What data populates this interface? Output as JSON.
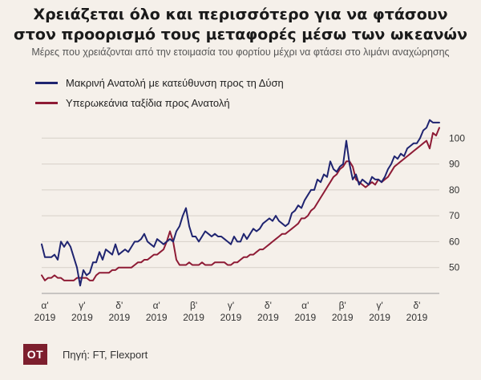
{
  "header": {
    "title_line1": "Χρειάζεται όλο και περισσότερο για να φτάσουν",
    "title_line2": "στον προορισμό τους μεταφορές μέσω των ωκεανών",
    "subtitle": "Μέρες που χρειάζονται από την ετοιμασία του φορτίου μέχρι να φτάσει στο λιμάνι αναχώρησης"
  },
  "footer": {
    "logo": "OT",
    "source": "Πηγή: FT, Flexport"
  },
  "colors": {
    "series1": "#1f2470",
    "series2": "#8e1b35",
    "grid": "#d6d0c8",
    "background": "#f5f0ea"
  },
  "chart_data": {
    "type": "line",
    "title": "",
    "xlabel": "",
    "ylabel": "",
    "ylim": [
      40,
      110
    ],
    "yticks": [
      50,
      60,
      70,
      80,
      90,
      100
    ],
    "xticks": [
      {
        "top": "α'",
        "bottom": "2019"
      },
      {
        "top": "γ'",
        "bottom": "2019"
      },
      {
        "top": "δ'",
        "bottom": "2019"
      },
      {
        "top": "α'",
        "bottom": "2019"
      },
      {
        "top": "β'",
        "bottom": "2019"
      },
      {
        "top": "γ'",
        "bottom": "2019"
      },
      {
        "top": "δ'",
        "bottom": "2019"
      },
      {
        "top": "α'",
        "bottom": "2019"
      },
      {
        "top": "β'",
        "bottom": "2019"
      },
      {
        "top": "γ'",
        "bottom": "2019"
      },
      {
        "top": "δ'",
        "bottom": "2019"
      }
    ],
    "grid": true,
    "legend": "top-left",
    "series": [
      {
        "name": "Μακρινή Ανατολή με κατεύθυνση προς τη Δύση",
        "values": [
          59,
          54,
          54,
          54,
          55,
          53,
          60,
          58,
          60,
          58,
          54,
          50,
          43,
          49,
          47,
          48,
          52,
          52,
          56,
          53,
          57,
          56,
          55,
          59,
          55,
          56,
          57,
          56,
          58,
          60,
          60,
          61,
          63,
          60,
          59,
          58,
          61,
          60,
          59,
          60,
          61,
          60,
          64,
          66,
          70,
          73,
          66,
          62,
          62,
          60,
          62,
          64,
          63,
          62,
          63,
          62,
          62,
          61,
          60,
          59,
          62,
          60,
          60,
          63,
          61,
          63,
          65,
          64,
          65,
          67,
          68,
          69,
          68,
          70,
          68,
          67,
          66,
          67,
          71,
          72,
          74,
          73,
          76,
          78,
          80,
          80,
          84,
          83,
          86,
          85,
          91,
          88,
          87,
          89,
          90,
          99,
          90,
          84,
          86,
          82,
          84,
          83,
          82,
          85,
          84,
          84,
          83,
          85,
          88,
          90,
          93,
          92,
          94,
          93,
          96,
          97,
          98,
          98,
          100,
          103,
          104,
          107,
          106,
          106,
          106
        ]
      },
      {
        "name": "Υπερωκεάνια ταξίδια προς Ανατολή",
        "values": [
          47,
          45,
          46,
          46,
          47,
          46,
          46,
          45,
          45,
          45,
          45,
          46,
          46,
          46,
          46,
          45,
          45,
          47,
          48,
          48,
          48,
          48,
          49,
          49,
          50,
          50,
          50,
          50,
          50,
          51,
          52,
          52,
          53,
          53,
          54,
          55,
          55,
          56,
          57,
          60,
          64,
          60,
          53,
          51,
          51,
          51,
          52,
          51,
          51,
          51,
          52,
          51,
          51,
          51,
          52,
          52,
          52,
          52,
          51,
          51,
          52,
          52,
          53,
          54,
          54,
          55,
          55,
          56,
          57,
          57,
          58,
          59,
          60,
          61,
          62,
          63,
          63,
          64,
          65,
          66,
          67,
          69,
          69,
          70,
          72,
          73,
          75,
          77,
          79,
          81,
          83,
          85,
          86,
          88,
          89,
          91,
          91,
          89,
          84,
          83,
          82,
          81,
          82,
          83,
          82,
          84,
          83,
          84,
          85,
          87,
          89,
          90,
          91,
          92,
          93,
          94,
          95,
          96,
          97,
          98,
          99,
          96,
          102,
          101,
          104
        ]
      }
    ]
  }
}
